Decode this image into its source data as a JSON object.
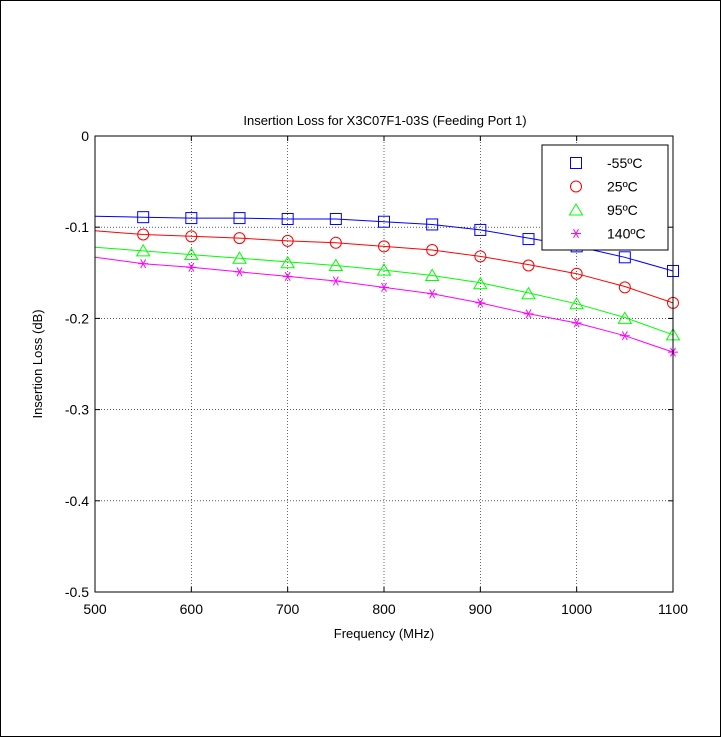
{
  "chart_data": {
    "type": "line",
    "title": "Insertion Loss for X3C07F1-03S (Feeding Port 1)",
    "xlabel": "Frequency (MHz)",
    "ylabel": "Insertion Loss (dB)",
    "xlim": [
      500,
      1100
    ],
    "ylim": [
      -0.5,
      0
    ],
    "xticks": [
      500,
      600,
      700,
      800,
      900,
      1000,
      1100
    ],
    "xtick_labels": [
      "500",
      "600",
      "700",
      "800",
      "900",
      "1000",
      "1100"
    ],
    "yticks": [
      0,
      -0.1,
      -0.2,
      -0.3,
      -0.4,
      -0.5
    ],
    "ytick_labels": [
      "0",
      "-0.1",
      "-0.2",
      "-0.3",
      "-0.4",
      "-0.5"
    ],
    "grid": true,
    "legend_position": "top-right",
    "curve_x": [
      500,
      550,
      600,
      650,
      700,
      750,
      800,
      850,
      900,
      950,
      1000,
      1050,
      1100
    ],
    "marker_x": [
      550,
      600,
      650,
      700,
      750,
      800,
      850,
      900,
      950,
      1000,
      1050,
      1100
    ],
    "series": [
      {
        "name": "-55ºC",
        "color": "#0000ff",
        "marker": "square",
        "curve_y": [
          -0.088,
          -0.089,
          -0.09,
          -0.09,
          -0.091,
          -0.091,
          -0.094,
          -0.097,
          -0.103,
          -0.112,
          -0.121,
          -0.133,
          -0.148
        ],
        "marker_y": [
          -0.089,
          -0.09,
          -0.09,
          -0.091,
          -0.091,
          -0.094,
          -0.097,
          -0.103,
          -0.113,
          -0.121,
          -0.133,
          -0.148
        ]
      },
      {
        "name": "25ºC",
        "color": "#ff0000",
        "marker": "circle",
        "curve_y": [
          -0.104,
          -0.108,
          -0.11,
          -0.112,
          -0.115,
          -0.117,
          -0.121,
          -0.125,
          -0.132,
          -0.141,
          -0.151,
          -0.165,
          -0.183
        ],
        "marker_y": [
          -0.108,
          -0.11,
          -0.112,
          -0.115,
          -0.117,
          -0.121,
          -0.125,
          -0.132,
          -0.142,
          -0.151,
          -0.166,
          -0.183
        ]
      },
      {
        "name": "95ºC",
        "color": "#00ff00",
        "marker": "triangle",
        "curve_y": [
          -0.122,
          -0.126,
          -0.13,
          -0.134,
          -0.138,
          -0.142,
          -0.147,
          -0.153,
          -0.161,
          -0.172,
          -0.184,
          -0.199,
          -0.218
        ],
        "marker_y": [
          -0.126,
          -0.13,
          -0.134,
          -0.139,
          -0.142,
          -0.147,
          -0.153,
          -0.162,
          -0.173,
          -0.184,
          -0.2,
          -0.218
        ]
      },
      {
        "name": "140ºC",
        "color": "#ff00ff",
        "marker": "asterisk",
        "curve_y": [
          -0.133,
          -0.14,
          -0.144,
          -0.149,
          -0.154,
          -0.159,
          -0.166,
          -0.173,
          -0.183,
          -0.195,
          -0.205,
          -0.219,
          -0.237
        ],
        "marker_y": [
          -0.14,
          -0.144,
          -0.149,
          -0.154,
          -0.159,
          -0.166,
          -0.173,
          -0.183,
          -0.195,
          -0.205,
          -0.219,
          -0.237
        ]
      }
    ]
  }
}
